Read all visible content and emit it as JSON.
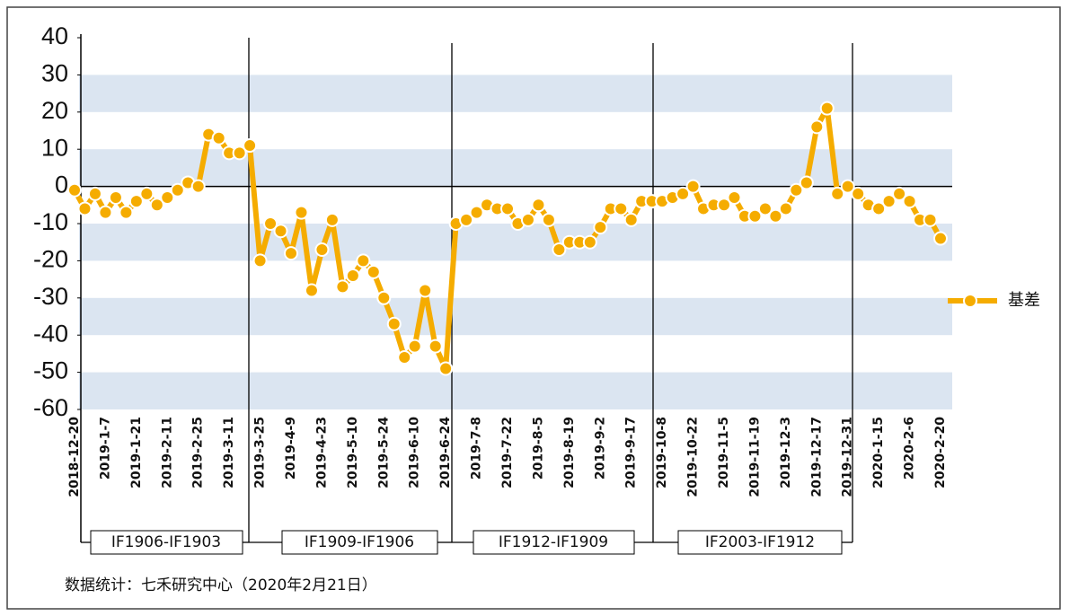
{
  "chart_data": {
    "type": "line",
    "categories": [
      "2018-12-20",
      null,
      null,
      "2019-1-7",
      null,
      null,
      "2019-1-21",
      null,
      null,
      "2019-2-11",
      null,
      null,
      "2019-2-25",
      null,
      null,
      "2019-3-11",
      null,
      null,
      "2019-3-25",
      null,
      null,
      "2019-4-9",
      null,
      null,
      "2019-4-23",
      null,
      null,
      "2019-5-10",
      null,
      null,
      "2019-5-24",
      null,
      null,
      "2019-6-10",
      null,
      null,
      "2019-6-24",
      null,
      null,
      "2019-7-8",
      null,
      null,
      "2019-7-22",
      null,
      null,
      "2019-8-5",
      null,
      null,
      "2019-8-19",
      null,
      null,
      "2019-9-2",
      null,
      null,
      "2019-9-17",
      null,
      null,
      "2019-10-8",
      null,
      null,
      "2019-10-22",
      null,
      null,
      "2019-11-5",
      null,
      null,
      "2019-11-19",
      null,
      null,
      "2019-12-3",
      null,
      null,
      "2019-12-17",
      null,
      null,
      "2019-12-31",
      null,
      null,
      "2020-1-15",
      null,
      null,
      "2020-2-6",
      null,
      null,
      "2020-2-20"
    ],
    "series": [
      {
        "name": "基差",
        "color": "#f5ac00",
        "values": [
          -1,
          -6,
          -2,
          -7,
          -3,
          -7,
          -4,
          -2,
          -5,
          -3,
          -1,
          1,
          0,
          14,
          13,
          9,
          9,
          11,
          -20,
          -10,
          -12,
          -18,
          -7,
          -28,
          -17,
          -9,
          -27,
          -24,
          -20,
          -23,
          -30,
          -37,
          -46,
          -43,
          -28,
          -43,
          -49,
          -10,
          -9,
          -7,
          -5,
          -6,
          -6,
          -10,
          -9,
          -5,
          -9,
          -17,
          -15,
          -15,
          -15,
          -11,
          -6,
          -6,
          -9,
          -4,
          -4,
          -4,
          -3,
          -2,
          0,
          -6,
          -5,
          -5,
          -3,
          -8,
          -8,
          -6,
          -8,
          -6,
          -1,
          1,
          16,
          21,
          -2,
          0,
          -2,
          -5,
          -6,
          -4,
          -2,
          -4,
          -9,
          -9,
          -14
        ]
      }
    ],
    "ylim": [
      -60,
      40
    ],
    "yticks": [
      -60,
      -50,
      -40,
      -30,
      -20,
      -10,
      0,
      10,
      20,
      30,
      40
    ],
    "bands": [
      [
        20,
        30
      ],
      [
        0,
        10
      ],
      [
        -20,
        -10
      ],
      [
        -40,
        -30
      ],
      [
        -60,
        -50
      ]
    ],
    "contracts": [
      "IF1906-IF1903",
      "IF1909-IF1906",
      "IF1912-IF1909",
      "IF2003-IF1912"
    ],
    "source": "数据统计：七禾研究中心（2020年2月21日）"
  }
}
